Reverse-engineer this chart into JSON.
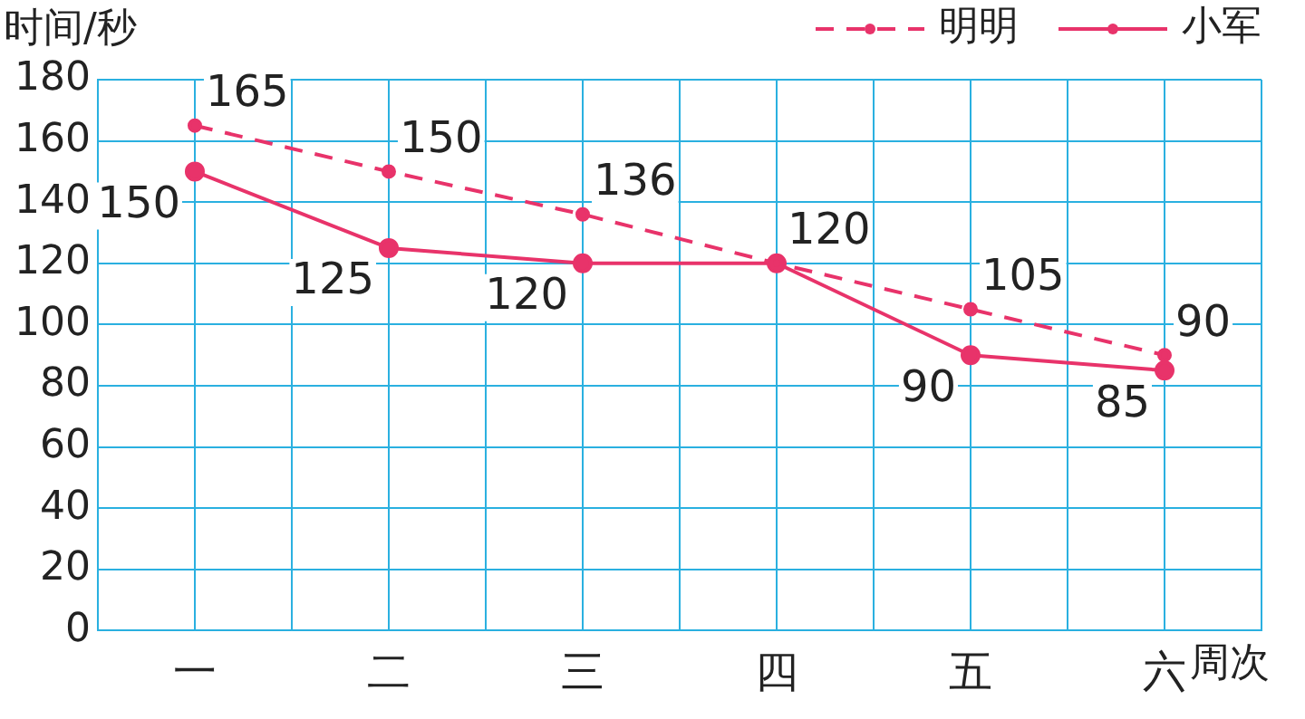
{
  "chart_data": {
    "type": "line",
    "ylabel": "时间/秒",
    "xlabel": "周次",
    "categories": [
      "一",
      "二",
      "三",
      "四",
      "五",
      "六"
    ],
    "series": [
      {
        "name": "明明",
        "color": "#e8336a",
        "line_style": "dashed",
        "values": [
          165,
          150,
          136,
          120,
          105,
          90
        ],
        "value_labels": [
          "165",
          "150",
          "136",
          "120",
          "105",
          "90"
        ]
      },
      {
        "name": "小军",
        "color": "#e8336a",
        "line_style": "solid",
        "values": [
          150,
          125,
          120,
          120,
          90,
          85
        ],
        "value_labels": [
          "150",
          "125",
          "120",
          null,
          "90",
          "85"
        ]
      }
    ],
    "ylim": [
      0,
      180
    ],
    "yticks": [
      0,
      20,
      40,
      60,
      80,
      100,
      120,
      140,
      160,
      180
    ],
    "grid": true,
    "legend": "top right",
    "marker": "circle"
  }
}
